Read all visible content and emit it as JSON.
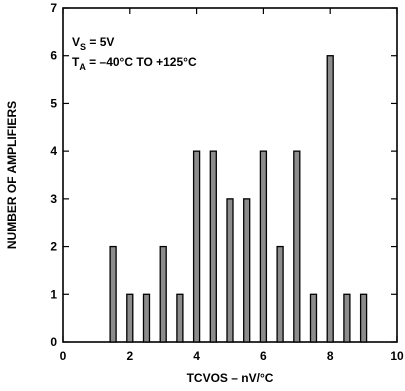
{
  "chart_data": {
    "type": "bar",
    "xlabel": "TCVOS – nV/°C",
    "ylabel": "NUMBER OF AMPLIFIERS",
    "xlim": [
      0,
      10
    ],
    "ylim": [
      0,
      7
    ],
    "x_ticks": [
      "0",
      "2",
      "4",
      "6",
      "8",
      "10"
    ],
    "y_ticks": [
      "0",
      "1",
      "2",
      "3",
      "4",
      "5",
      "6",
      "7"
    ],
    "annotations": {
      "line1": {
        "main": "V",
        "sub": "S",
        "rest": " = 5V"
      },
      "line2": {
        "main": "T",
        "sub": "A",
        "rest": " = –40°C TO +125°C"
      }
    },
    "x": [
      1.5,
      2.0,
      2.5,
      3.0,
      3.5,
      4.0,
      4.5,
      5.0,
      5.5,
      6.0,
      6.5,
      7.0,
      7.5,
      8.0,
      8.5,
      9.0
    ],
    "values": [
      2,
      1,
      1,
      2,
      1,
      4,
      4,
      3,
      3,
      4,
      2,
      4,
      1,
      6,
      1,
      1
    ],
    "colors": {
      "bar_fill": "#8c8c8c",
      "bar_stroke": "#000000"
    }
  }
}
